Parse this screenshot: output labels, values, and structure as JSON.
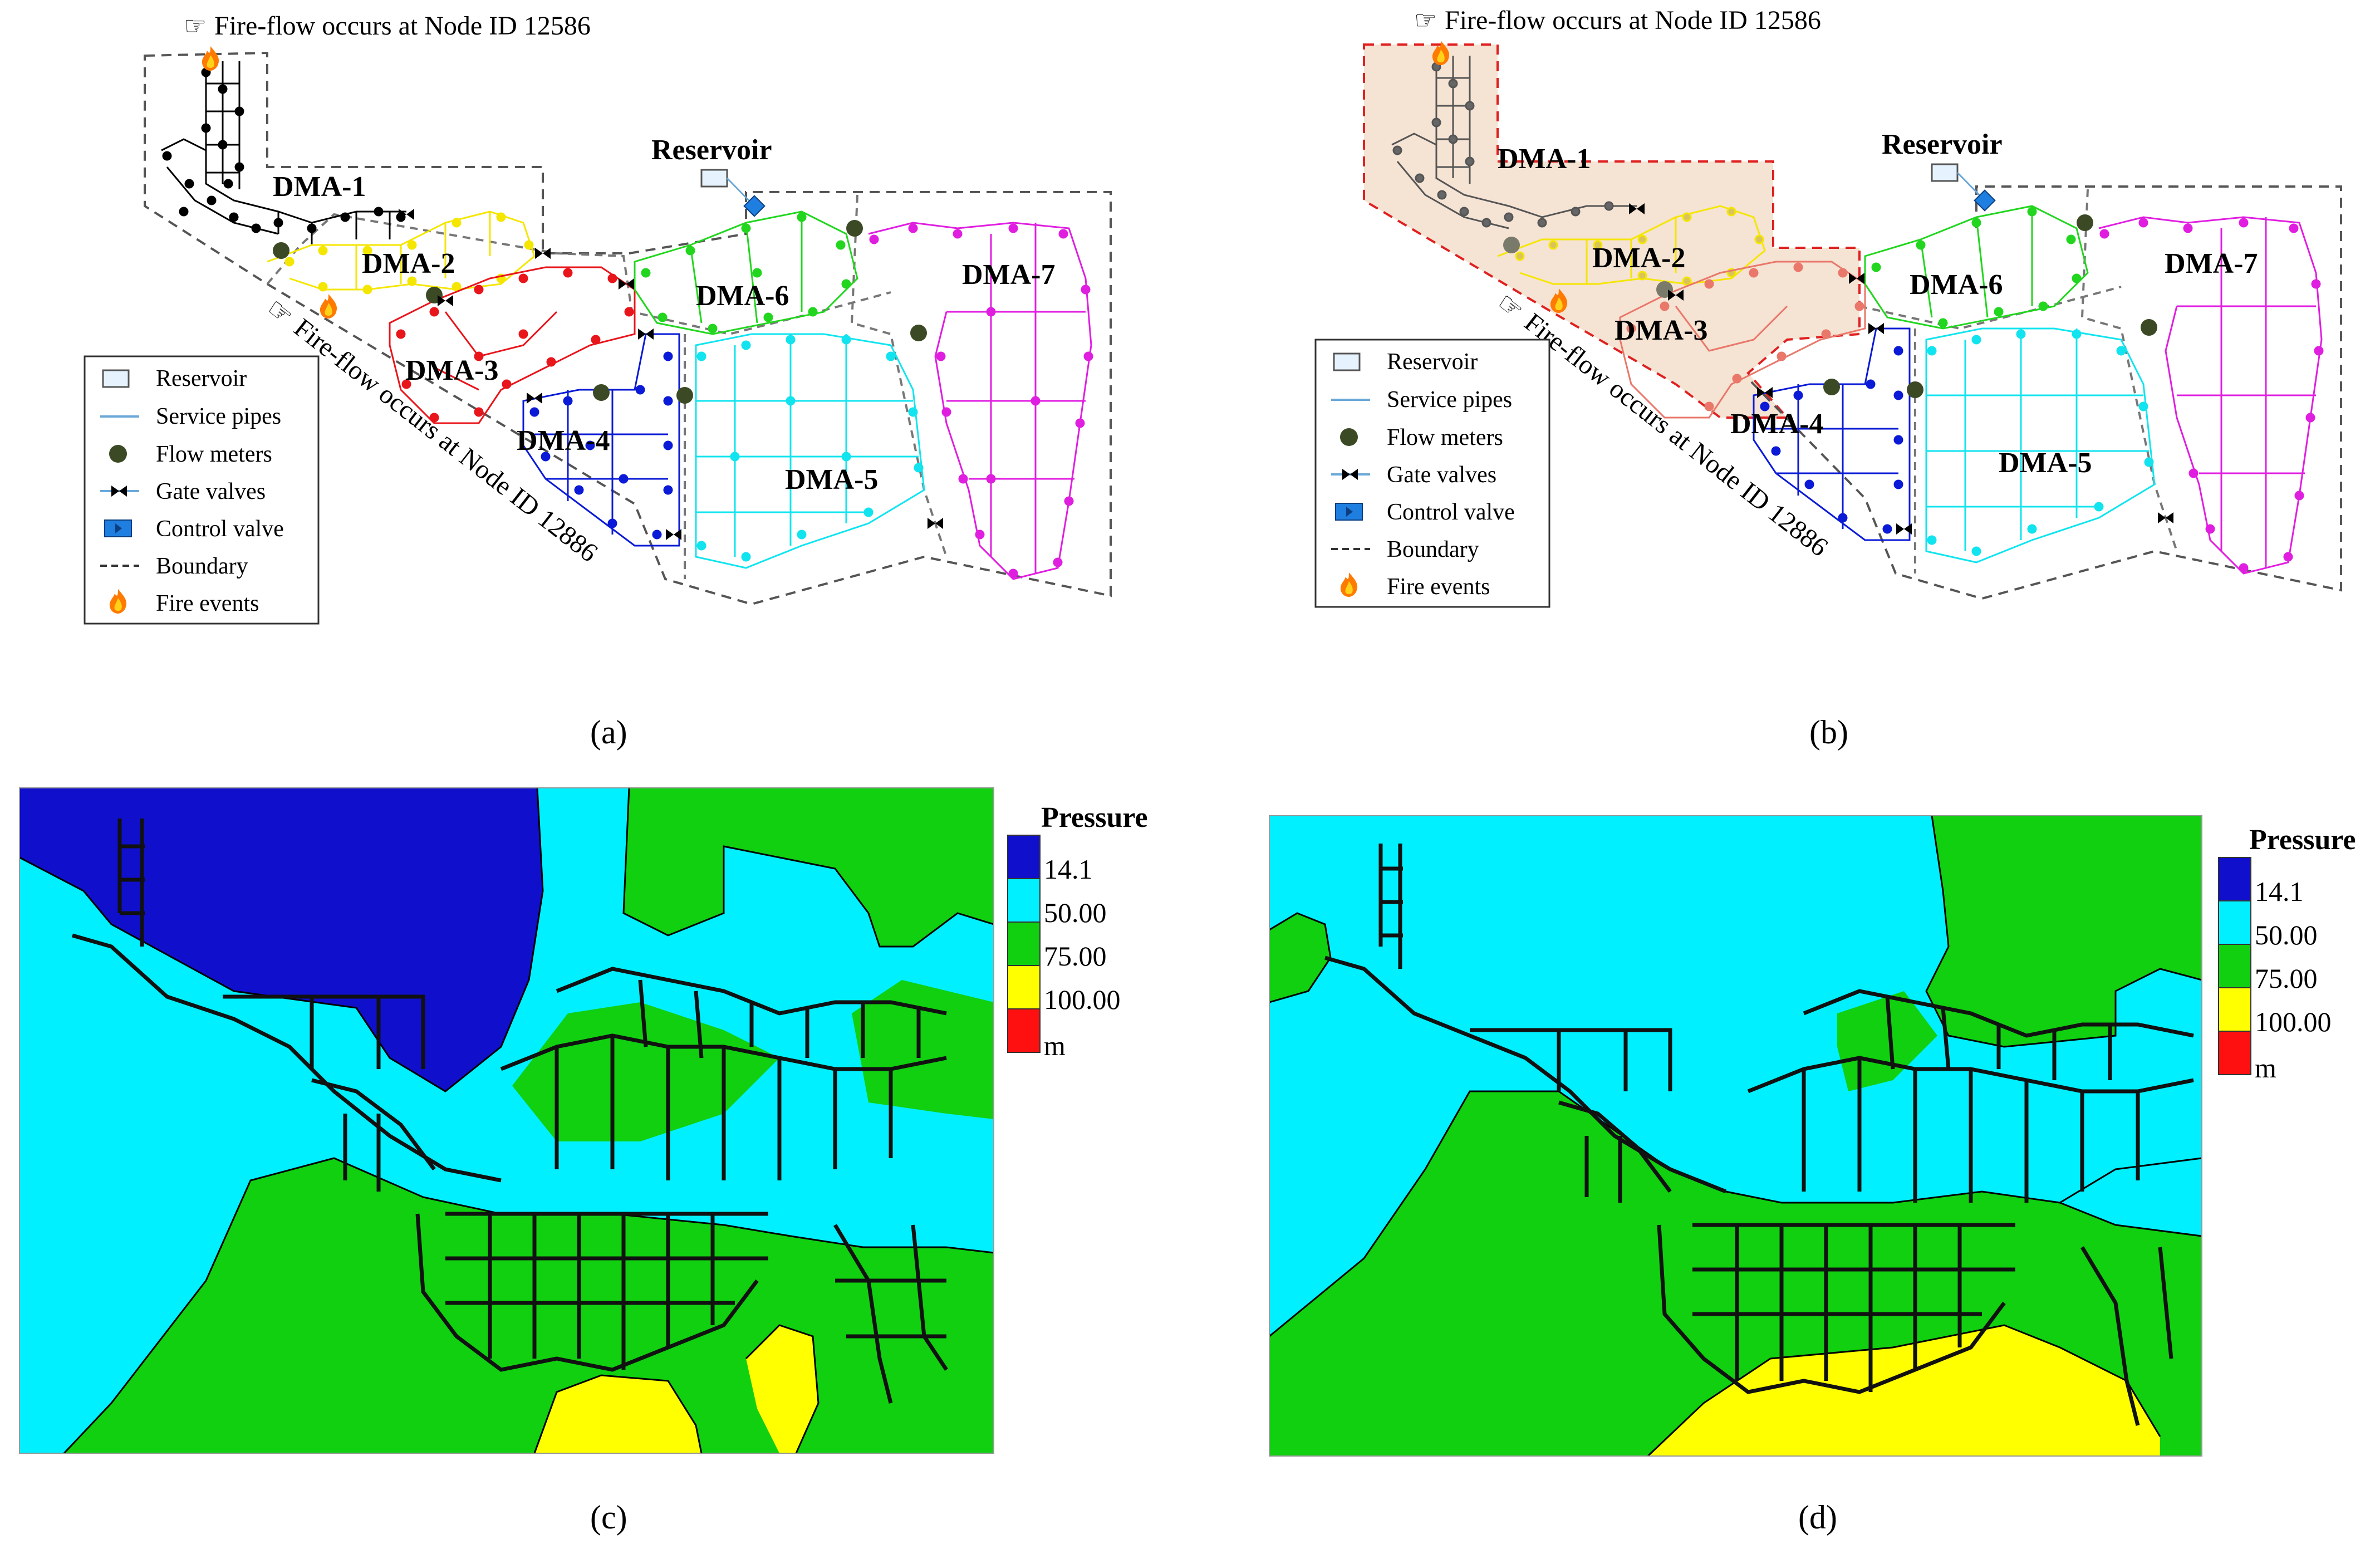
{
  "panel_a": {
    "caption": "(a)",
    "fire_note_top": "Fire-flow occurs at Node ID 12586",
    "fire_note_diag": "Fire-flow occurs at Node ID 12886",
    "reservoir_label": "Reservoir",
    "dma_labels": [
      "DMA-1",
      "DMA-2",
      "DMA-3",
      "DMA-4",
      "DMA-5",
      "DMA-6",
      "DMA-7"
    ],
    "legend": [
      "Reservoir",
      "Service pipes",
      "Flow meters",
      "Gate valves",
      "Control valve",
      "Boundary",
      "Fire events"
    ]
  },
  "panel_b": {
    "caption": "(b)",
    "fire_note_top": "Fire-flow occurs at Node ID 12586",
    "fire_note_diag": "Fire-flow occurs at Node ID 12886",
    "reservoir_label": "Reservoir",
    "dma_labels": [
      "DMA-1",
      "DMA-2",
      "DMA-3",
      "DMA-4",
      "DMA-5",
      "DMA-6",
      "DMA-7"
    ],
    "legend": [
      "Reservoir",
      "Service pipes",
      "Flow meters",
      "Gate valves",
      "Control valve",
      "Boundary",
      "Fire events"
    ]
  },
  "panel_c": {
    "caption": "(c)",
    "legend_title": "Pressure",
    "legend_values": [
      "14.1",
      "50.00",
      "75.00",
      "100.00",
      "m"
    ]
  },
  "panel_d": {
    "caption": "(d)",
    "legend_title": "Pressure",
    "legend_values": [
      "14.1",
      "50.00",
      "75.00",
      "100.00",
      "m"
    ]
  },
  "colors": {
    "dma1": "#000000",
    "dma2": "#f5e600",
    "dma3": "#e8151b",
    "dma4": "#0a1ad6",
    "dma5": "#12e4ef",
    "dma6": "#22d61f",
    "dma7": "#e01ee0",
    "pipe": "#6aa8d8",
    "meter": "#3b4a25",
    "p_low": "#1010cc",
    "p_50": "#00f0ff",
    "p_75": "#10d010",
    "p_100": "#ffff00",
    "p_high": "#ff1010",
    "highlight": "#f5e3d3"
  }
}
